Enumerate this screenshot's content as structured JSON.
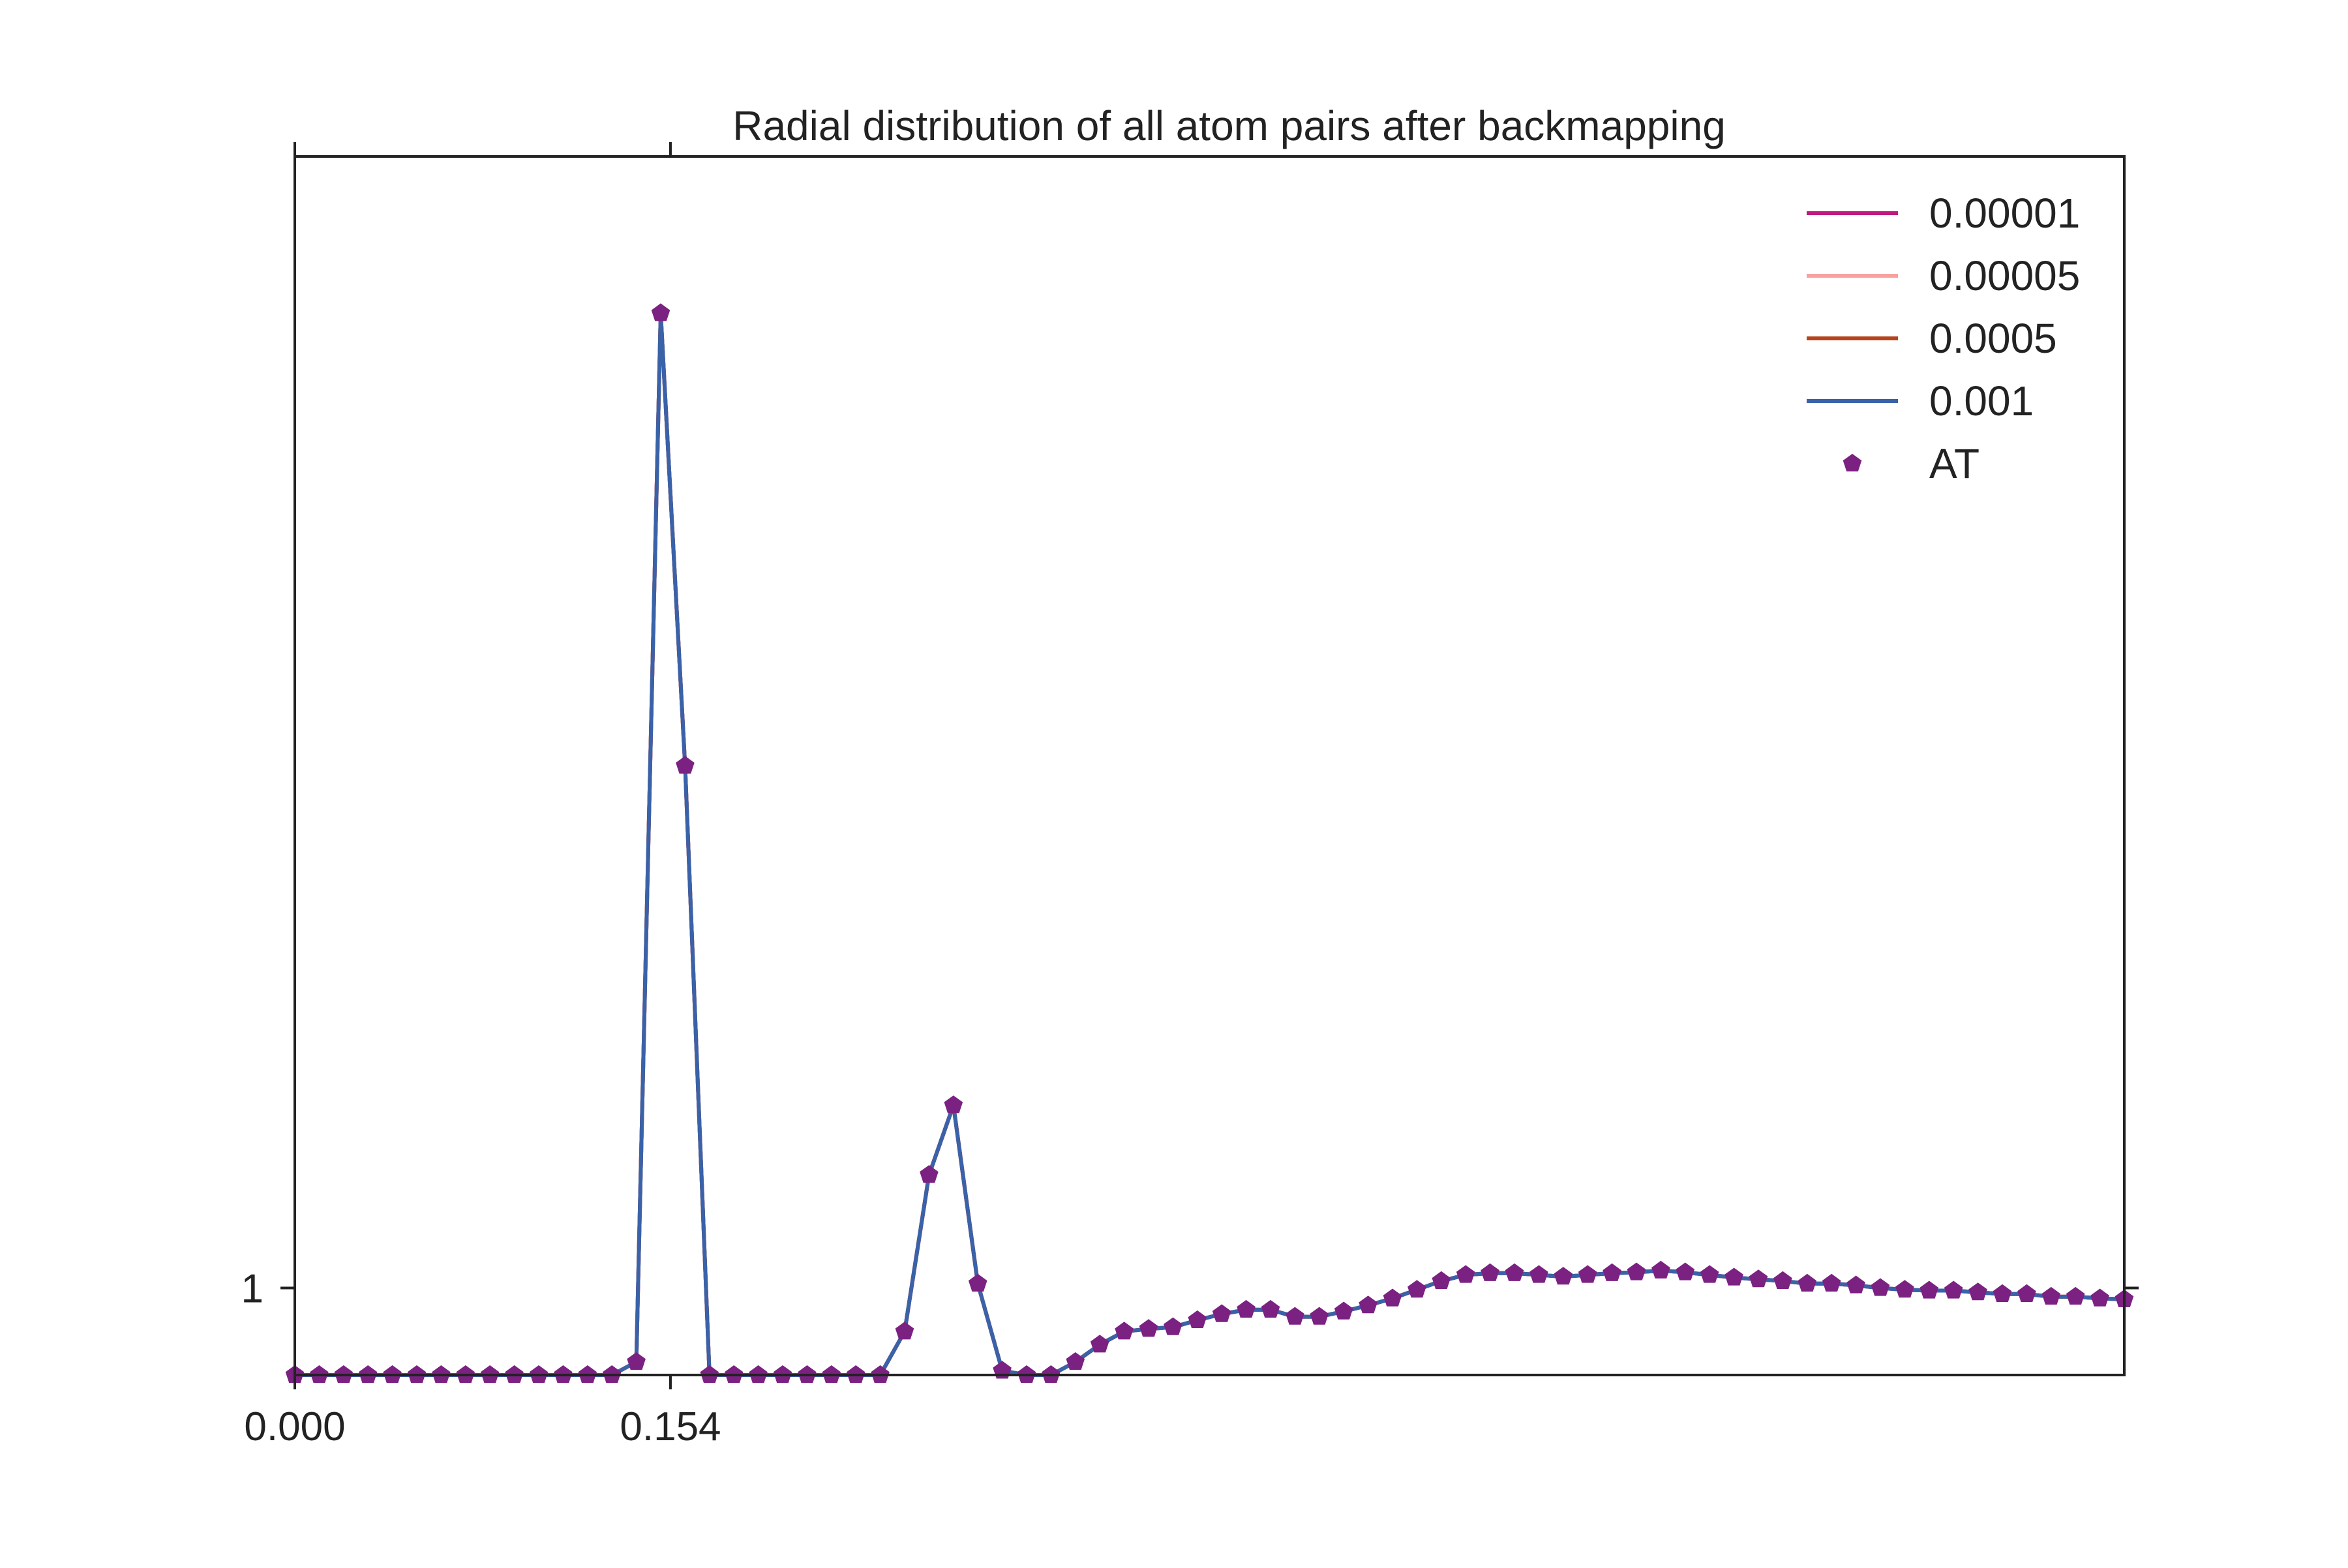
{
  "chart_data": {
    "type": "line",
    "title": "Radial distribution of all atom pairs after backmapping",
    "xlabel": "",
    "ylabel": "",
    "xlim": [
      0.0,
      0.75
    ],
    "ylim": [
      0.9,
      2.3
    ],
    "x_ticks": [
      {
        "value": 0.0,
        "label": "0.000"
      },
      {
        "value": 0.154,
        "label": "0.154"
      }
    ],
    "y_ticks": [
      {
        "value": 1.0,
        "label": "1"
      }
    ],
    "grid": false,
    "legend_position": "top-right",
    "x": [
      0.0,
      0.01,
      0.02,
      0.03,
      0.04,
      0.05,
      0.06,
      0.07,
      0.08,
      0.09,
      0.1,
      0.11,
      0.12,
      0.13,
      0.14,
      0.15,
      0.16,
      0.17,
      0.18,
      0.19,
      0.2,
      0.21,
      0.22,
      0.23,
      0.24,
      0.25,
      0.26,
      0.27,
      0.28,
      0.29,
      0.3,
      0.31,
      0.32,
      0.33,
      0.34,
      0.35,
      0.36,
      0.37,
      0.38,
      0.39,
      0.4,
      0.41,
      0.42,
      0.43,
      0.44,
      0.45,
      0.46,
      0.47,
      0.48,
      0.49,
      0.5,
      0.51,
      0.52,
      0.53,
      0.54,
      0.55,
      0.56,
      0.57,
      0.58,
      0.59,
      0.6,
      0.61,
      0.62,
      0.63,
      0.64,
      0.65,
      0.66,
      0.67,
      0.68,
      0.69,
      0.7,
      0.71,
      0.72,
      0.73,
      0.74,
      0.75
    ],
    "series": [
      {
        "name": "0.00001",
        "style": "line",
        "color": "#c0197f",
        "values": [
          0.9,
          0.9,
          0.9,
          0.9,
          0.9,
          0.9,
          0.9,
          0.9,
          0.9,
          0.9,
          0.9,
          0.9,
          0.9,
          0.9,
          0.915,
          2.12,
          1.6,
          0.9,
          0.9,
          0.9,
          0.9,
          0.9,
          0.9,
          0.9,
          0.9,
          0.95,
          1.13,
          1.21,
          1.005,
          0.905,
          0.9,
          0.9,
          0.915,
          0.935,
          0.95,
          0.953,
          0.955,
          0.963,
          0.97,
          0.975,
          0.975,
          0.967,
          0.967,
          0.973,
          0.98,
          0.988,
          0.998,
          1.008,
          1.015,
          1.017,
          1.017,
          1.015,
          1.013,
          1.015,
          1.017,
          1.018,
          1.02,
          1.018,
          1.015,
          1.012,
          1.01,
          1.008,
          1.005,
          1.005,
          1.003,
          1.0,
          0.998,
          0.997,
          0.997,
          0.995,
          0.993,
          0.993,
          0.99,
          0.99,
          0.988,
          0.987
        ]
      },
      {
        "name": "0.00005",
        "style": "line",
        "color": "#f7a1a1",
        "values": [
          0.9,
          0.9,
          0.9,
          0.9,
          0.9,
          0.9,
          0.9,
          0.9,
          0.9,
          0.9,
          0.9,
          0.9,
          0.9,
          0.9,
          0.915,
          2.12,
          1.6,
          0.9,
          0.9,
          0.9,
          0.9,
          0.9,
          0.9,
          0.9,
          0.9,
          0.95,
          1.13,
          1.21,
          1.005,
          0.905,
          0.9,
          0.9,
          0.915,
          0.935,
          0.95,
          0.953,
          0.955,
          0.963,
          0.97,
          0.975,
          0.975,
          0.967,
          0.967,
          0.973,
          0.98,
          0.988,
          0.998,
          1.008,
          1.015,
          1.017,
          1.017,
          1.015,
          1.013,
          1.015,
          1.017,
          1.018,
          1.02,
          1.018,
          1.015,
          1.012,
          1.01,
          1.008,
          1.005,
          1.005,
          1.003,
          1.0,
          0.998,
          0.997,
          0.997,
          0.995,
          0.993,
          0.993,
          0.99,
          0.99,
          0.988,
          0.987
        ]
      },
      {
        "name": "0.0005",
        "style": "line",
        "color": "#b5441c",
        "values": [
          0.9,
          0.9,
          0.9,
          0.9,
          0.9,
          0.9,
          0.9,
          0.9,
          0.9,
          0.9,
          0.9,
          0.9,
          0.9,
          0.9,
          0.915,
          2.12,
          1.6,
          0.9,
          0.9,
          0.9,
          0.9,
          0.9,
          0.9,
          0.9,
          0.9,
          0.95,
          1.13,
          1.21,
          1.005,
          0.905,
          0.9,
          0.9,
          0.915,
          0.935,
          0.95,
          0.953,
          0.955,
          0.963,
          0.97,
          0.975,
          0.975,
          0.967,
          0.967,
          0.973,
          0.98,
          0.988,
          0.998,
          1.008,
          1.015,
          1.017,
          1.017,
          1.015,
          1.013,
          1.015,
          1.017,
          1.018,
          1.02,
          1.018,
          1.015,
          1.012,
          1.01,
          1.008,
          1.005,
          1.005,
          1.003,
          1.0,
          0.998,
          0.997,
          0.997,
          0.995,
          0.993,
          0.993,
          0.99,
          0.99,
          0.988,
          0.987
        ]
      },
      {
        "name": "0.001",
        "style": "line",
        "color": "#3a62a8",
        "values": [
          0.9,
          0.9,
          0.9,
          0.9,
          0.9,
          0.9,
          0.9,
          0.9,
          0.9,
          0.9,
          0.9,
          0.9,
          0.9,
          0.9,
          0.915,
          2.12,
          1.6,
          0.9,
          0.9,
          0.9,
          0.9,
          0.9,
          0.9,
          0.9,
          0.9,
          0.95,
          1.13,
          1.21,
          1.005,
          0.905,
          0.9,
          0.9,
          0.915,
          0.935,
          0.95,
          0.953,
          0.955,
          0.963,
          0.97,
          0.975,
          0.975,
          0.967,
          0.967,
          0.973,
          0.98,
          0.988,
          0.998,
          1.008,
          1.015,
          1.017,
          1.017,
          1.015,
          1.013,
          1.015,
          1.017,
          1.018,
          1.02,
          1.018,
          1.015,
          1.012,
          1.01,
          1.008,
          1.005,
          1.005,
          1.003,
          1.0,
          0.998,
          0.997,
          0.997,
          0.995,
          0.993,
          0.993,
          0.99,
          0.99,
          0.988,
          0.987
        ]
      },
      {
        "name": "AT",
        "style": "marker",
        "marker": "pentagon",
        "color": "#7b2182",
        "values": [
          0.9,
          0.9,
          0.9,
          0.9,
          0.9,
          0.9,
          0.9,
          0.9,
          0.9,
          0.9,
          0.9,
          0.9,
          0.9,
          0.9,
          0.915,
          2.12,
          1.6,
          0.9,
          0.9,
          0.9,
          0.9,
          0.9,
          0.9,
          0.9,
          0.9,
          0.95,
          1.13,
          1.21,
          1.005,
          0.905,
          0.9,
          0.9,
          0.915,
          0.935,
          0.95,
          0.953,
          0.955,
          0.963,
          0.97,
          0.975,
          0.975,
          0.967,
          0.967,
          0.973,
          0.98,
          0.988,
          0.998,
          1.008,
          1.015,
          1.017,
          1.017,
          1.015,
          1.013,
          1.015,
          1.017,
          1.018,
          1.02,
          1.018,
          1.015,
          1.012,
          1.01,
          1.008,
          1.005,
          1.005,
          1.003,
          1.0,
          0.998,
          0.997,
          0.997,
          0.995,
          0.993,
          0.993,
          0.99,
          0.99,
          0.988,
          0.987
        ]
      }
    ]
  }
}
